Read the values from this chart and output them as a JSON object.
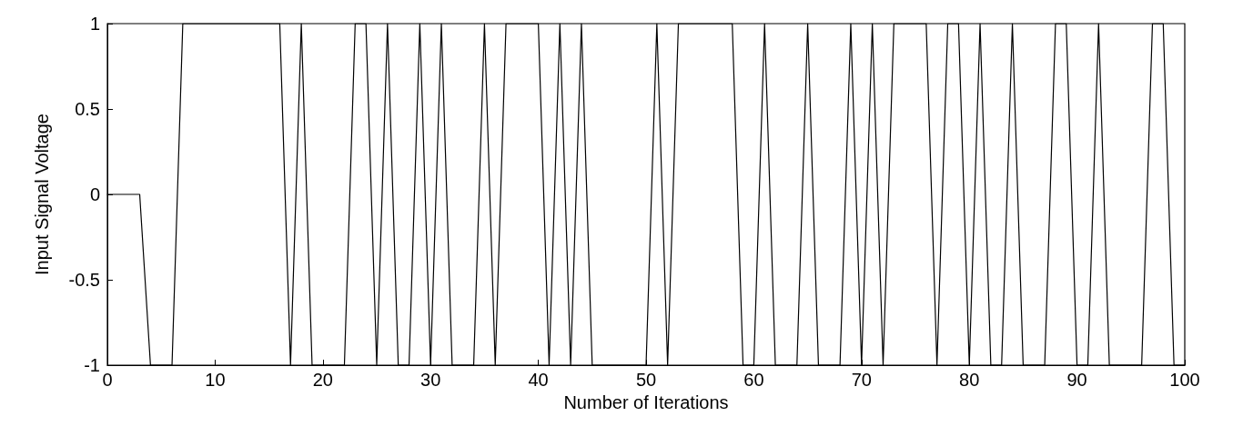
{
  "chart_data": {
    "type": "line",
    "xlabel": "Number of Iterations",
    "ylabel": "Input Signal Voltage",
    "x": [
      0,
      1,
      2,
      3,
      4,
      5,
      6,
      7,
      8,
      9,
      10,
      11,
      12,
      13,
      14,
      15,
      16,
      17,
      18,
      19,
      20,
      21,
      22,
      23,
      24,
      25,
      26,
      27,
      28,
      29,
      30,
      31,
      32,
      33,
      34,
      35,
      36,
      37,
      38,
      39,
      40,
      41,
      42,
      43,
      44,
      45,
      46,
      47,
      48,
      49,
      50,
      51,
      52,
      53,
      54,
      55,
      56,
      57,
      58,
      59,
      60,
      61,
      62,
      63,
      64,
      65,
      66,
      67,
      68,
      69,
      70,
      71,
      72,
      73,
      74,
      75,
      76,
      77,
      78,
      79,
      80,
      81,
      82,
      83,
      84,
      85,
      86,
      87,
      88,
      89,
      90,
      91,
      92,
      93,
      94,
      95,
      96,
      97,
      98,
      99,
      100
    ],
    "series": [
      {
        "color": "#000000",
        "values": [
          0,
          0,
          0,
          0,
          -1,
          -1,
          -1,
          1,
          1,
          1,
          1,
          1,
          1,
          1,
          1,
          1,
          1,
          -1,
          1,
          -1,
          -1,
          -1,
          -1,
          1,
          1,
          -1,
          1,
          -1,
          -1,
          1,
          -1,
          1,
          -1,
          -1,
          -1,
          1,
          -1,
          1,
          1,
          1,
          1,
          -1,
          1,
          -1,
          1,
          -1,
          -1,
          -1,
          -1,
          -1,
          -1,
          1,
          -1,
          1,
          1,
          1,
          1,
          1,
          1,
          -1,
          -1,
          1,
          -1,
          -1,
          -1,
          1,
          -1,
          -1,
          -1,
          1,
          -1,
          1,
          -1,
          1,
          1,
          1,
          1,
          -1,
          1,
          1,
          -1,
          1,
          -1,
          -1,
          1,
          -1,
          -1,
          -1,
          1,
          1,
          -1,
          -1,
          1,
          -1,
          -1,
          -1,
          -1,
          1,
          1,
          -1,
          -1
        ]
      }
    ],
    "xlim": [
      0,
      100
    ],
    "xticks": [
      0,
      10,
      20,
      30,
      40,
      50,
      60,
      70,
      80,
      90,
      100
    ],
    "ylim": [
      -1,
      1
    ],
    "yticks": [
      -1,
      -0.5,
      0,
      0.5,
      1
    ],
    "grid": false,
    "marker": "none",
    "line_style": "solid"
  }
}
